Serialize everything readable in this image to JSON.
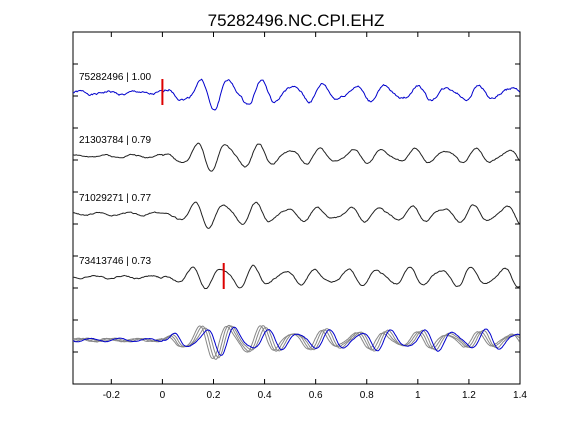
{
  "chart_data": {
    "type": "line",
    "title": "75282496.NC.CPI.EHZ",
    "xlabel": "",
    "ylabel": "",
    "xlim": [
      -0.35,
      1.4
    ],
    "x_ticks": [
      {
        "value": -0.2,
        "label": "-0.2"
      },
      {
        "value": 0,
        "label": "0"
      },
      {
        "value": 0.2,
        "label": "0.2"
      },
      {
        "value": 0.4,
        "label": "0.4"
      },
      {
        "value": 0.6,
        "label": "0.6"
      },
      {
        "value": 0.8,
        "label": "0.8"
      },
      {
        "value": 1.0,
        "label": "1"
      },
      {
        "value": 1.2,
        "label": "1.2"
      },
      {
        "value": 1.4,
        "label": "1.4"
      }
    ],
    "y_tick_count": 11,
    "grid": false,
    "colors": {
      "reference_trace": "#0000cc",
      "trace": "#222222",
      "stack_gray": "#888888",
      "pick_marker": "#dd0000"
    },
    "series": [
      {
        "label": "75282496 | 1.00",
        "event_id": "75282496",
        "correlation": 1.0,
        "pick_time": 0.0,
        "color": "#0000cc",
        "seed": 1
      },
      {
        "label": "21303784 | 0.79",
        "event_id": "21303784",
        "correlation": 0.79,
        "pick_time": null,
        "color": "#222222",
        "seed": 2
      },
      {
        "label": "71029271 | 0.77",
        "event_id": "71029271",
        "correlation": 0.77,
        "pick_time": null,
        "color": "#222222",
        "seed": 3
      },
      {
        "label": "73413746 | 0.73",
        "event_id": "73413746",
        "correlation": 0.73,
        "pick_time": 0.24,
        "color": "#222222",
        "seed": 4
      }
    ]
  }
}
